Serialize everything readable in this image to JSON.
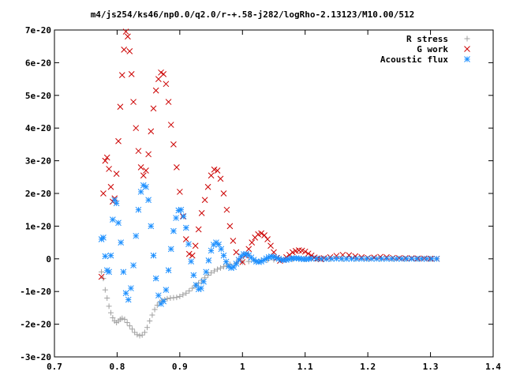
{
  "chart_data": {
    "type": "scatter",
    "title": "m4/js254/ks46/np0.0/q2.0/r-+.58-j282/logRho-2.13123/M10.00/512",
    "xlabel": "",
    "ylabel": "",
    "xlim": [
      0.7,
      1.4
    ],
    "ylim": [
      -3e-20,
      7e-20
    ],
    "x_ticks": [
      0.7,
      0.8,
      0.9,
      1.0,
      1.1,
      1.2,
      1.3,
      1.4
    ],
    "x_tick_labels": [
      "0.7",
      "0.8",
      "0.9",
      "1",
      "1.1",
      "1.2",
      "1.3",
      "1.4"
    ],
    "y_ticks": [
      -3e-20,
      -2e-20,
      -1e-20,
      0,
      1e-20,
      2e-20,
      3e-20,
      4e-20,
      5e-20,
      6e-20,
      7e-20
    ],
    "y_tick_labels": [
      "-3e-20",
      "-2e-20",
      "-1e-20",
      "0",
      "1e-20",
      "2e-20",
      "3e-20",
      "4e-20",
      "5e-20",
      "6e-20",
      "7e-20"
    ],
    "grid": false,
    "legend_position": "top-right",
    "series": [
      {
        "name": "R stress",
        "marker": "plus",
        "color": "#a0a0a0",
        "x": [
          0.775,
          0.778,
          0.781,
          0.784,
          0.787,
          0.79,
          0.793,
          0.796,
          0.799,
          0.802,
          0.805,
          0.808,
          0.812,
          0.816,
          0.82,
          0.824,
          0.828,
          0.832,
          0.836,
          0.84,
          0.844,
          0.848,
          0.852,
          0.856,
          0.86,
          0.864,
          0.868,
          0.872,
          0.876,
          0.88,
          0.885,
          0.89,
          0.895,
          0.9,
          0.905,
          0.91,
          0.915,
          0.92,
          0.925,
          0.93,
          0.935,
          0.94,
          0.945,
          0.95,
          0.955,
          0.96,
          0.965,
          0.97,
          0.975,
          0.98,
          0.99,
          1.0,
          1.01,
          1.02,
          1.03,
          1.04,
          1.05,
          1.06,
          1.07,
          1.08,
          1.09,
          1.1,
          1.12,
          1.14,
          1.16,
          1.18,
          1.2,
          1.22,
          1.24,
          1.26,
          1.28,
          1.3,
          1.31
        ],
        "values": [
          -4e-21,
          -6e-21,
          -9.5e-21,
          -1.2e-20,
          -1.45e-20,
          -1.65e-20,
          -1.8e-20,
          -1.9e-20,
          -1.95e-20,
          -1.9e-20,
          -1.85e-20,
          -1.82e-20,
          -1.85e-20,
          -1.95e-20,
          -2.05e-20,
          -2.15e-20,
          -2.25e-20,
          -2.32e-20,
          -2.35e-20,
          -2.33e-20,
          -2.25e-20,
          -2.1e-20,
          -1.9e-20,
          -1.72e-20,
          -1.55e-20,
          -1.42e-20,
          -1.33e-20,
          -1.28e-20,
          -1.25e-20,
          -1.22e-20,
          -1.2e-20,
          -1.19e-20,
          -1.18e-20,
          -1.15e-20,
          -1.1e-20,
          -1.05e-20,
          -9.8e-21,
          -9e-21,
          -8.2e-21,
          -7.4e-21,
          -6.6e-21,
          -5.8e-21,
          -5e-21,
          -4.3e-21,
          -3.7e-21,
          -3.2e-21,
          -2.8e-21,
          -2.4e-21,
          -2e-21,
          -1.7e-21,
          -1.3e-21,
          -1e-21,
          -8e-22,
          -6e-22,
          -5e-22,
          -4e-22,
          -3e-22,
          -2.5e-22,
          -2e-22,
          -1.5e-22,
          -1.2e-22,
          -1e-22,
          -6e-23,
          -4e-23,
          -3e-23,
          -2e-23,
          -1.5e-23,
          -1e-23,
          -8e-24,
          -5e-24,
          -3e-24,
          -2e-24,
          -1e-24
        ]
      },
      {
        "name": "G work",
        "marker": "cross",
        "color": "#cc0000",
        "x": [
          0.775,
          0.778,
          0.781,
          0.784,
          0.787,
          0.79,
          0.793,
          0.796,
          0.799,
          0.802,
          0.805,
          0.808,
          0.811,
          0.814,
          0.817,
          0.82,
          0.823,
          0.826,
          0.83,
          0.834,
          0.838,
          0.842,
          0.846,
          0.85,
          0.854,
          0.858,
          0.862,
          0.866,
          0.87,
          0.874,
          0.878,
          0.882,
          0.886,
          0.89,
          0.895,
          0.9,
          0.905,
          0.91,
          0.915,
          0.92,
          0.925,
          0.93,
          0.935,
          0.94,
          0.945,
          0.95,
          0.955,
          0.96,
          0.965,
          0.97,
          0.975,
          0.98,
          0.985,
          0.99,
          0.995,
          1.0,
          1.005,
          1.01,
          1.015,
          1.02,
          1.025,
          1.03,
          1.035,
          1.04,
          1.045,
          1.05,
          1.055,
          1.06,
          1.065,
          1.07,
          1.075,
          1.08,
          1.085,
          1.09,
          1.095,
          1.1,
          1.105,
          1.11,
          1.115,
          1.12,
          1.125,
          1.13,
          1.14,
          1.15,
          1.16,
          1.17,
          1.18,
          1.19,
          1.2,
          1.21,
          1.22,
          1.23,
          1.24,
          1.25,
          1.26,
          1.27,
          1.28,
          1.29,
          1.3,
          1.31
        ],
        "values": [
          -5.5e-21,
          2e-20,
          3e-20,
          3.1e-20,
          2.75e-20,
          2.2e-20,
          1.75e-20,
          1.85e-20,
          2.6e-20,
          3.6e-20,
          4.65e-20,
          5.62e-20,
          6.4e-20,
          6.95e-20,
          6.8e-20,
          6.35e-20,
          5.65e-20,
          4.8e-20,
          4e-20,
          3.3e-20,
          2.8e-20,
          2.55e-20,
          2.7e-20,
          3.2e-20,
          3.9e-20,
          4.6e-20,
          5.15e-20,
          5.5e-20,
          5.7e-20,
          5.65e-20,
          5.35e-20,
          4.8e-20,
          4.1e-20,
          3.5e-20,
          2.8e-20,
          2.05e-20,
          1.3e-20,
          6e-21,
          1.5e-21,
          1e-21,
          4e-21,
          9e-21,
          1.4e-20,
          1.8e-20,
          2.2e-20,
          2.55e-20,
          2.73e-20,
          2.7e-20,
          2.45e-20,
          2e-20,
          1.5e-20,
          1e-20,
          5.5e-21,
          2e-21,
          -5e-22,
          -1e-21,
          1e-21,
          3e-21,
          5e-21,
          6.5e-21,
          7.5e-21,
          7.8e-21,
          7.2e-21,
          6e-21,
          4e-21,
          2e-21,
          3e-22,
          -6e-22,
          -3e-22,
          5e-22,
          1.2e-21,
          2e-21,
          2.4e-21,
          2.6e-21,
          2.5e-21,
          2.2e-21,
          1.6e-21,
          1e-21,
          4e-22,
          1e-22,
          -1e-22,
          2e-22,
          5e-22,
          9e-22,
          1.2e-21,
          1.1e-21,
          8e-22,
          5e-22,
          3e-22,
          4e-22,
          6e-22,
          5e-22,
          3e-22,
          2e-22,
          2e-22,
          2e-22,
          1e-22,
          1e-22,
          5e-23,
          2e-23
        ]
      },
      {
        "name": "Acoustic flux",
        "marker": "star",
        "color": "#1e90ff",
        "x": [
          0.775,
          0.778,
          0.781,
          0.784,
          0.787,
          0.79,
          0.793,
          0.796,
          0.799,
          0.802,
          0.806,
          0.81,
          0.814,
          0.818,
          0.822,
          0.826,
          0.83,
          0.834,
          0.838,
          0.842,
          0.846,
          0.85,
          0.854,
          0.858,
          0.862,
          0.866,
          0.87,
          0.874,
          0.878,
          0.882,
          0.886,
          0.89,
          0.894,
          0.898,
          0.902,
          0.906,
          0.91,
          0.914,
          0.918,
          0.922,
          0.926,
          0.93,
          0.934,
          0.938,
          0.942,
          0.946,
          0.95,
          0.954,
          0.958,
          0.962,
          0.966,
          0.97,
          0.974,
          0.978,
          0.982,
          0.986,
          0.99,
          0.994,
          0.998,
          1.002,
          1.006,
          1.01,
          1.014,
          1.018,
          1.022,
          1.026,
          1.03,
          1.034,
          1.038,
          1.042,
          1.046,
          1.05,
          1.054,
          1.058,
          1.062,
          1.066,
          1.07,
          1.074,
          1.078,
          1.082,
          1.086,
          1.09,
          1.094,
          1.098,
          1.102,
          1.106,
          1.11,
          1.118,
          1.126,
          1.134,
          1.142,
          1.15,
          1.158,
          1.166,
          1.174,
          1.182,
          1.19,
          1.198,
          1.206,
          1.214,
          1.222,
          1.23,
          1.238,
          1.246,
          1.254,
          1.262,
          1.27,
          1.278,
          1.286,
          1.294,
          1.302,
          1.31
        ],
        "values": [
          6e-21,
          6.5e-21,
          8e-22,
          -3.5e-21,
          -4e-21,
          1e-21,
          1.2e-20,
          1.8e-20,
          1.7e-20,
          1.1e-20,
          5e-21,
          -4e-21,
          -1.05e-20,
          -1.25e-20,
          -9e-21,
          -2e-21,
          7e-21,
          1.5e-20,
          2.05e-20,
          2.25e-20,
          2.2e-20,
          1.8e-20,
          1e-20,
          1e-21,
          -6e-21,
          -1.12e-20,
          -1.38e-20,
          -1.3e-20,
          -9.5e-21,
          -3.5e-21,
          3e-21,
          8.5e-21,
          1.25e-20,
          1.48e-20,
          1.5e-20,
          1.3e-20,
          9.5e-21,
          4.5e-21,
          -8e-22,
          -5e-21,
          -8e-21,
          -9.3e-21,
          -9e-21,
          -7e-21,
          -4e-21,
          -5e-22,
          2.5e-21,
          4.3e-21,
          5e-21,
          4.4e-21,
          3e-21,
          1e-21,
          -9e-22,
          -2.3e-21,
          -2.8e-21,
          -2.5e-21,
          -1.5e-21,
          -3e-22,
          8e-22,
          1.4e-21,
          1.5e-21,
          1.1e-21,
          4e-22,
          -3e-22,
          -8e-22,
          -1e-21,
          -8e-22,
          -4e-22,
          1e-22,
          5e-22,
          7e-22,
          6e-22,
          3e-22,
          0,
          -3e-22,
          -4e-22,
          -3e-22,
          -1e-22,
          1e-22,
          2e-22,
          2e-22,
          1e-22,
          0,
          -1e-22,
          -1e-22,
          0,
          1e-22,
          5e-23,
          0,
          -5e-23,
          0,
          5e-23,
          0,
          -2e-23,
          0,
          2e-23,
          0,
          0,
          0,
          0,
          0,
          0,
          0,
          0,
          0,
          0,
          0,
          0,
          0,
          0,
          0,
          0
        ]
      }
    ]
  }
}
